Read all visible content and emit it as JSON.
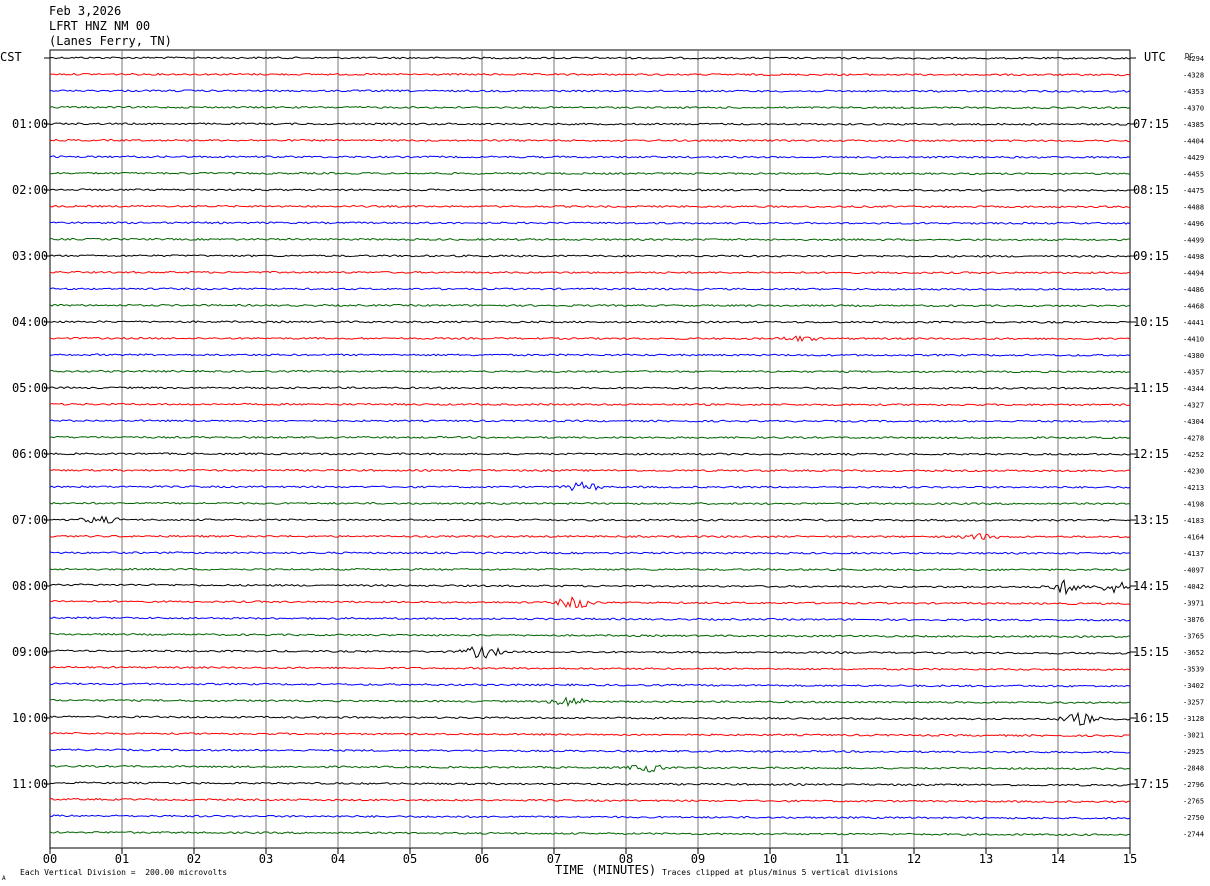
{
  "header": {
    "date": "Feb 3,2026",
    "station": "LFRT HNZ NM 00",
    "location": "(Lanes Ferry, TN)"
  },
  "left_axis_label": "CST",
  "right_axis_label": "UTC",
  "dc_label": "DC",
  "footer": {
    "scale_note": "Each Vertical Division =  200.00 microvolts",
    "clip_note": "Traces clipped at plus/minus 5 vertical divisions",
    "corner_mark": "A"
  },
  "chart_data": {
    "type": "line",
    "title": "",
    "xlabel": "TIME (MINUTES)",
    "xlim": [
      0,
      15
    ],
    "x_ticks": [
      "00",
      "01",
      "02",
      "03",
      "04",
      "05",
      "06",
      "07",
      "08",
      "09",
      "10",
      "11",
      "12",
      "13",
      "14",
      "15"
    ],
    "grid": true,
    "trace_colors": [
      "#000000",
      "#ff0000",
      "#0000ff",
      "#006400"
    ],
    "cst_hour_labels": [
      "01:00",
      "02:00",
      "03:00",
      "04:00",
      "05:00",
      "06:00",
      "07:00",
      "08:00",
      "09:00",
      "10:00",
      "11:00"
    ],
    "utc_hour_labels": [
      "07:15",
      "08:15",
      "09:15",
      "10:15",
      "11:15",
      "12:15",
      "13:15",
      "14:15",
      "15:15",
      "16:15",
      "17:15"
    ],
    "dc_offsets": [
      -4294,
      -4328,
      -4353,
      -4370,
      -4385,
      -4404,
      -4429,
      -4455,
      -4475,
      -4488,
      -4496,
      -4499,
      -4498,
      -4494,
      -4486,
      -4468,
      -4441,
      -4410,
      -4380,
      -4357,
      -4344,
      -4327,
      -4304,
      -4278,
      -4252,
      -4230,
      -4213,
      -4198,
      -4183,
      -4164,
      -4137,
      -4097,
      -4042,
      -3971,
      -3876,
      -3765,
      -3652,
      -3539,
      -3402,
      -3257,
      -3128,
      -3021,
      -2925,
      -2848,
      -2796,
      -2765,
      -2750,
      -2744
    ],
    "events": [
      {
        "trace": 28,
        "minute": 0.7,
        "amp": 1.2
      },
      {
        "trace": 26,
        "minute": 7.4,
        "amp": 1.5
      },
      {
        "trace": 32,
        "minute": 14.1,
        "amp": 2.2
      },
      {
        "trace": 32,
        "minute": 14.8,
        "amp": 1.8
      },
      {
        "trace": 33,
        "minute": 7.3,
        "amp": 2.0
      },
      {
        "trace": 36,
        "minute": 6.0,
        "amp": 2.2
      },
      {
        "trace": 39,
        "minute": 7.2,
        "amp": 1.6
      },
      {
        "trace": 40,
        "minute": 14.3,
        "amp": 2.0
      },
      {
        "trace": 43,
        "minute": 8.3,
        "amp": 1.3
      },
      {
        "trace": 29,
        "minute": 12.9,
        "amp": 1.0
      },
      {
        "trace": 17,
        "minute": 10.4,
        "amp": 0.8
      }
    ]
  }
}
